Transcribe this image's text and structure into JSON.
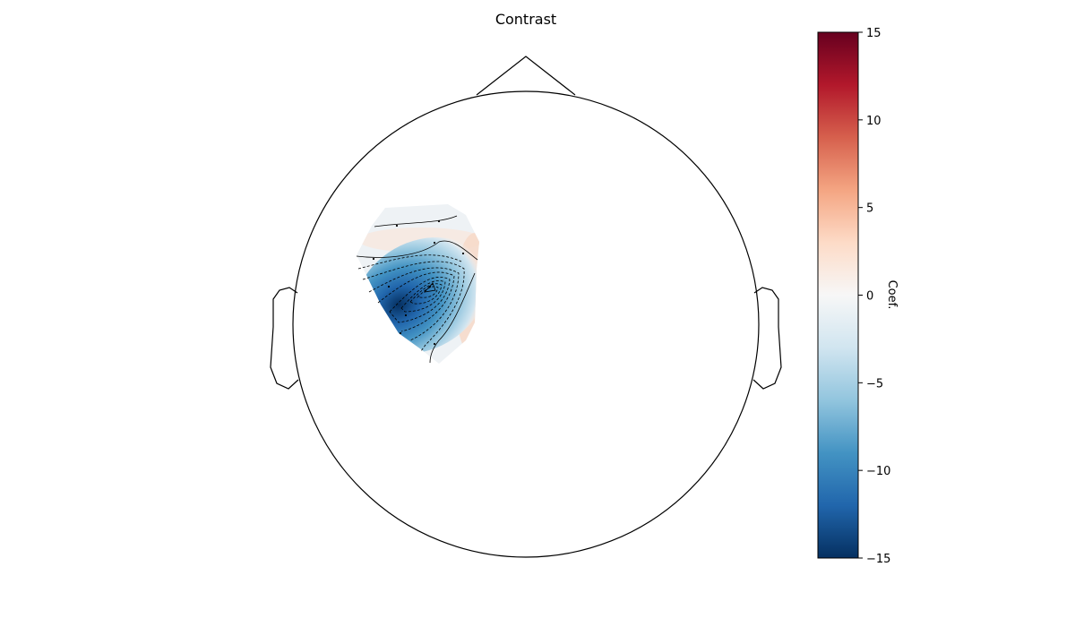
{
  "chart_data": {
    "type": "heatmap",
    "subtype": "eeg-topomap",
    "title": "Contrast",
    "colorbar": {
      "label": "Coef.",
      "vmin": -15,
      "vmax": 15,
      "ticks": [
        15,
        10,
        5,
        0,
        -5,
        -10,
        -15
      ],
      "tick_labels": [
        "15",
        "10",
        "5",
        "0",
        "−5",
        "−10",
        "−15"
      ],
      "colormap": "RdBu_r",
      "colormap_stops": [
        "#053061",
        "#2166ac",
        "#4393c3",
        "#92c5de",
        "#d1e5f0",
        "#f7f7f7",
        "#fddbc7",
        "#f4a582",
        "#d6604d",
        "#b2182b",
        "#67001f"
      ]
    },
    "sensors": [
      {
        "value": -0.5
      },
      {
        "value": -0.3
      },
      {
        "value": 0.5
      },
      {
        "value": 1.0
      },
      {
        "value": -2.5
      },
      {
        "value": -15
      },
      {
        "value": -3.0
      },
      {
        "value": -11
      },
      {
        "value": -8
      },
      {
        "value": -1.5
      }
    ],
    "contour_levels": [
      -13.5,
      -12,
      -10.5,
      -9,
      -7.5,
      -6,
      -4.5,
      -3,
      -1.5,
      0
    ]
  }
}
